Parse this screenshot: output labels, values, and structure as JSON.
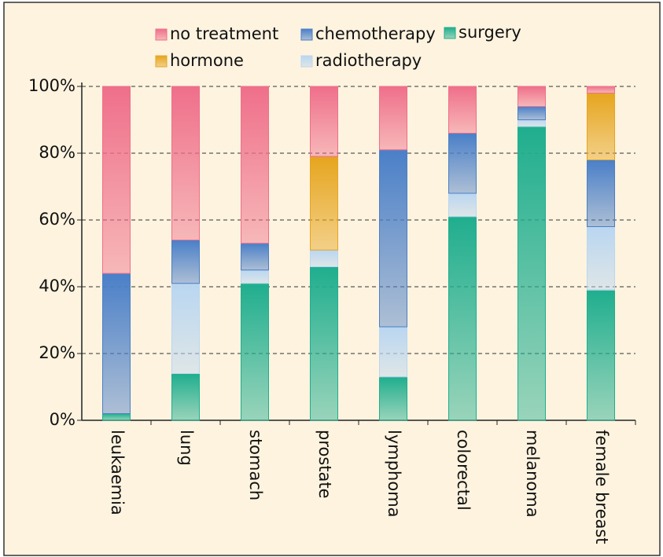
{
  "chart_data": {
    "type": "stacked_bar",
    "categories": [
      "leukaemia",
      "lung",
      "stomach",
      "prostate",
      "lymphoma",
      "colorectal",
      "melanoma",
      "female breast"
    ],
    "series": [
      {
        "name": "surgery",
        "color": "#1fae8e",
        "values": [
          2,
          14,
          41,
          46,
          13,
          61,
          88,
          39
        ]
      },
      {
        "name": "radiotherapy",
        "color": "#b9d6f1",
        "values": [
          0,
          27,
          4,
          5,
          15,
          7,
          2,
          19
        ]
      },
      {
        "name": "chemotherapy",
        "color": "#4a7fc8",
        "values": [
          42,
          13,
          8,
          0,
          53,
          18,
          4,
          20
        ]
      },
      {
        "name": "hormone",
        "color": "#e6a51e",
        "values": [
          0,
          0,
          0,
          28,
          0,
          0,
          0,
          20
        ]
      },
      {
        "name": "no treatment",
        "color": "#ef6f8a",
        "values": [
          56,
          46,
          47,
          21,
          19,
          14,
          6,
          2
        ]
      }
    ],
    "ylim": [
      0,
      100
    ],
    "yticks": [
      {
        "value": 0,
        "label": "0%"
      },
      {
        "value": 20,
        "label": "20%"
      },
      {
        "value": 40,
        "label": "40%"
      },
      {
        "value": 60,
        "label": "60%"
      },
      {
        "value": 80,
        "label": "80%"
      },
      {
        "value": 100,
        "label": "100%"
      }
    ],
    "grid": true
  }
}
